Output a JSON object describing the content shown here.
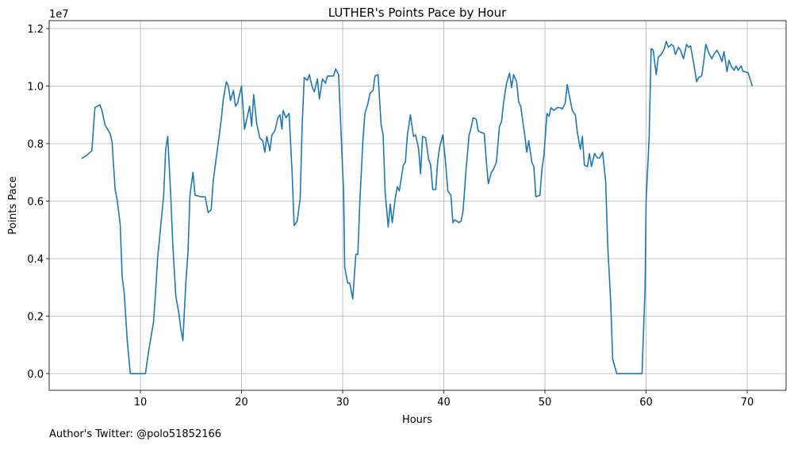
{
  "chart_data": {
    "type": "line",
    "title": "LUTHER's Points Pace by Hour",
    "x_label": "Hours",
    "y_label": "Points Pace",
    "y_offset_label": "1e7",
    "footnote": "Author's Twitter: @polo51852166",
    "color": "#1f77b4",
    "grid": true,
    "xlim": [
      0.98,
      73.84
    ],
    "ylim": [
      -0.058,
      1.2276
    ],
    "xticks": [
      10,
      20,
      30,
      40,
      50,
      60,
      70
    ],
    "yticks": [
      {
        "value": 0,
        "label": "0.0"
      },
      0.2,
      0.4,
      0.6,
      0.8,
      {
        "value": 1,
        "label": "1.0"
      },
      1.2
    ],
    "x": [
      4.2,
      4.7,
      5.2,
      5.5,
      6.0,
      6.2,
      6.5,
      7.0,
      7.2,
      7.5,
      7.7,
      8.0,
      8.2,
      8.4,
      8.7,
      9.0,
      10.5,
      10.8,
      11.3,
      11.5,
      11.7,
      12.0,
      12.3,
      12.5,
      12.7,
      13.0,
      13.2,
      13.5,
      13.8,
      14.0,
      14.2,
      14.5,
      14.7,
      14.9,
      15.2,
      15.4,
      16.0,
      16.4,
      16.7,
      17.0,
      17.2,
      17.5,
      17.8,
      18.0,
      18.2,
      18.5,
      18.7,
      18.9,
      19.2,
      19.4,
      19.6,
      20.0,
      20.3,
      20.8,
      21.0,
      21.2,
      21.5,
      21.8,
      22.1,
      22.3,
      22.5,
      22.8,
      23.0,
      23.3,
      23.6,
      23.8,
      24.0,
      24.1,
      24.4,
      24.7,
      25.0,
      25.2,
      25.5,
      25.8,
      26.0,
      26.2,
      26.5,
      26.7,
      27.0,
      27.2,
      27.5,
      27.7,
      28.0,
      28.3,
      28.5,
      29.1,
      29.3,
      29.6,
      29.8,
      30.1,
      30.2,
      30.5,
      30.7,
      31.0,
      31.3,
      31.5,
      31.7,
      32.0,
      32.2,
      32.5,
      32.7,
      33.0,
      33.2,
      33.5,
      33.8,
      34.0,
      34.2,
      34.5,
      34.7,
      34.9,
      35.2,
      35.4,
      35.6,
      36.0,
      36.2,
      36.4,
      36.7,
      37.0,
      37.2,
      37.5,
      37.7,
      37.9,
      38.2,
      38.5,
      38.7,
      38.9,
      39.2,
      39.4,
      39.6,
      39.9,
      40.2,
      40.4,
      40.7,
      40.9,
      41.1,
      41.5,
      41.7,
      41.9,
      42.2,
      42.5,
      42.7,
      42.9,
      43.2,
      43.4,
      43.6,
      44.0,
      44.2,
      44.4,
      44.7,
      44.9,
      45.2,
      45.5,
      45.7,
      45.9,
      46.2,
      46.5,
      46.7,
      46.9,
      47.2,
      47.4,
      47.6,
      48.0,
      48.2,
      48.4,
      48.7,
      48.9,
      49.1,
      49.5,
      49.7,
      49.9,
      50.2,
      50.4,
      50.6,
      50.9,
      51.2,
      51.5,
      51.7,
      52.0,
      52.2,
      52.4,
      52.7,
      53.0,
      53.2,
      53.5,
      53.7,
      53.9,
      54.2,
      54.4,
      54.6,
      54.9,
      55.2,
      55.4,
      55.7,
      56.0,
      56.2,
      56.5,
      56.7,
      57.1,
      59.6,
      59.9,
      60.0,
      60.3,
      60.5,
      60.7,
      61.0,
      61.2,
      61.5,
      61.8,
      62.0,
      62.2,
      62.5,
      62.7,
      62.9,
      63.2,
      63.4,
      63.7,
      64.0,
      64.2,
      64.4,
      64.7,
      65.0,
      65.2,
      65.5,
      65.7,
      65.9,
      66.2,
      66.5,
      66.7,
      67.0,
      67.3,
      67.5,
      67.7,
      68.0,
      68.2,
      68.4,
      68.7,
      68.9,
      69.1,
      69.4,
      69.6,
      69.8,
      70.1,
      70.5
    ],
    "values": [
      0.748,
      0.76,
      0.775,
      0.925,
      0.935,
      0.915,
      0.865,
      0.835,
      0.805,
      0.64,
      0.605,
      0.52,
      0.335,
      0.28,
      0.115,
      0,
      0,
      0.075,
      0.18,
      0.285,
      0.4,
      0.51,
      0.62,
      0.78,
      0.825,
      0.62,
      0.45,
      0.27,
      0.21,
      0.155,
      0.115,
      0.32,
      0.42,
      0.62,
      0.7,
      0.62,
      0.615,
      0.615,
      0.56,
      0.57,
      0.67,
      0.75,
      0.83,
      0.885,
      0.955,
      1.015,
      1.0,
      0.95,
      0.985,
      0.93,
      0.94,
      1.0,
      0.85,
      0.93,
      0.86,
      0.97,
      0.87,
      0.82,
      0.81,
      0.77,
      0.825,
      0.775,
      0.83,
      0.845,
      0.89,
      0.9,
      0.85,
      0.915,
      0.89,
      0.905,
      0.7,
      0.515,
      0.53,
      0.61,
      0.87,
      1.03,
      1.02,
      1.04,
      0.995,
      0.98,
      1.025,
      0.955,
      1.025,
      1.01,
      1.035,
      1.035,
      1.06,
      1.04,
      0.87,
      0.62,
      0.37,
      0.315,
      0.315,
      0.26,
      0.415,
      0.415,
      0.6,
      0.81,
      0.905,
      0.94,
      0.975,
      0.985,
      1.035,
      1.04,
      0.865,
      0.83,
      0.63,
      0.51,
      0.59,
      0.525,
      0.61,
      0.65,
      0.635,
      0.725,
      0.735,
      0.83,
      0.9,
      0.825,
      0.83,
      0.785,
      0.695,
      0.825,
      0.82,
      0.745,
      0.725,
      0.64,
      0.64,
      0.74,
      0.79,
      0.83,
      0.725,
      0.635,
      0.62,
      0.525,
      0.535,
      0.525,
      0.53,
      0.565,
      0.71,
      0.83,
      0.855,
      0.89,
      0.885,
      0.845,
      0.84,
      0.835,
      0.74,
      0.66,
      0.7,
      0.71,
      0.735,
      0.86,
      0.875,
      0.94,
      1.01,
      1.045,
      0.995,
      1.04,
      1.015,
      0.945,
      0.93,
      0.83,
      0.77,
      0.81,
      0.735,
      0.72,
      0.615,
      0.62,
      0.71,
      0.76,
      0.905,
      0.895,
      0.925,
      0.915,
      0.925,
      0.925,
      0.92,
      0.94,
      1.005,
      0.97,
      0.915,
      0.9,
      0.84,
      0.78,
      0.825,
      0.725,
      0.72,
      0.765,
      0.72,
      0.765,
      0.75,
      0.75,
      0.77,
      0.67,
      0.45,
      0.25,
      0.05,
      0,
      0,
      0.3,
      0.6,
      0.82,
      1.13,
      1.125,
      1.04,
      1.1,
      1.11,
      1.13,
      1.155,
      1.135,
      1.145,
      1.14,
      1.11,
      1.135,
      1.125,
      1.095,
      1.145,
      1.135,
      1.14,
      1.08,
      1.015,
      1.03,
      1.035,
      1.085,
      1.145,
      1.115,
      1.095,
      1.11,
      1.125,
      1.105,
      1.085,
      1.12,
      1.05,
      1.09,
      1.07,
      1.055,
      1.07,
      1.055,
      1.07,
      1.05,
      1.05,
      1.045,
      1.0
    ]
  }
}
